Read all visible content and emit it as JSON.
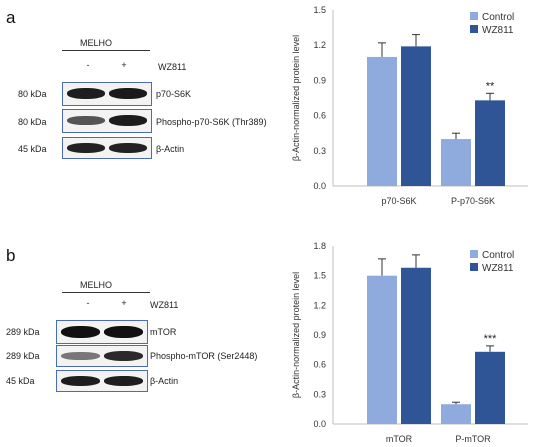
{
  "panels": [
    {
      "label": "a",
      "group": "MELHO",
      "lanes": [
        "-",
        "+"
      ],
      "treatment": "WZ811",
      "blots": [
        {
          "kda": "80 kDa",
          "name": "p70-S6K"
        },
        {
          "kda": "80 kDa",
          "name": "Phospho-p70-S6K (Thr389)"
        },
        {
          "kda": "45 kDa",
          "name": "β-Actin"
        }
      ]
    },
    {
      "label": "b",
      "group": "MELHO",
      "lanes": [
        "-",
        "+"
      ],
      "treatment": "WZ811",
      "blots": [
        {
          "kda": "289 kDa",
          "name": "mTOR"
        },
        {
          "kda": "289 kDa",
          "name": "Phospho-mTOR (Ser2448)"
        },
        {
          "kda": "45 kDa",
          "name": "β-Actin"
        }
      ]
    }
  ],
  "colors": {
    "control": "#8faadc",
    "wz811": "#2f5597"
  },
  "chart_data": [
    {
      "type": "bar",
      "categories": [
        "p70-S6K",
        "P-p70-S6K"
      ],
      "series": [
        {
          "name": "Control",
          "values": [
            1.1,
            0.4
          ],
          "errors": [
            0.12,
            0.05
          ]
        },
        {
          "name": "WZ811",
          "values": [
            1.19,
            0.73
          ],
          "errors": [
            0.1,
            0.06
          ]
        }
      ],
      "annotations": [
        {
          "category": "P-p70-S6K",
          "series": "WZ811",
          "text": "**"
        }
      ],
      "ylabel": "β-Actin-normalized protein level",
      "xlabel": "",
      "title": "",
      "ylim": [
        0,
        1.5
      ],
      "yticks": [
        "0.0",
        "0.3",
        "0.6",
        "0.9",
        "1.2",
        "1.5"
      ],
      "grid": false,
      "legend": "top-right"
    },
    {
      "type": "bar",
      "categories": [
        "mTOR",
        "P-mTOR"
      ],
      "series": [
        {
          "name": "Control",
          "values": [
            1.5,
            0.2
          ],
          "errors": [
            0.17,
            0.02
          ]
        },
        {
          "name": "WZ811",
          "values": [
            1.58,
            0.73
          ],
          "errors": [
            0.13,
            0.06
          ]
        }
      ],
      "annotations": [
        {
          "category": "P-mTOR",
          "series": "WZ811",
          "text": "***"
        }
      ],
      "ylabel": "β-Actin-normalized protein level",
      "xlabel": "",
      "title": "",
      "ylim": [
        0,
        1.8
      ],
      "yticks": [
        "0.0",
        "0.3",
        "0.6",
        "0.9",
        "1.2",
        "1.5",
        "1.8"
      ],
      "grid": false,
      "legend": "top-right"
    }
  ]
}
